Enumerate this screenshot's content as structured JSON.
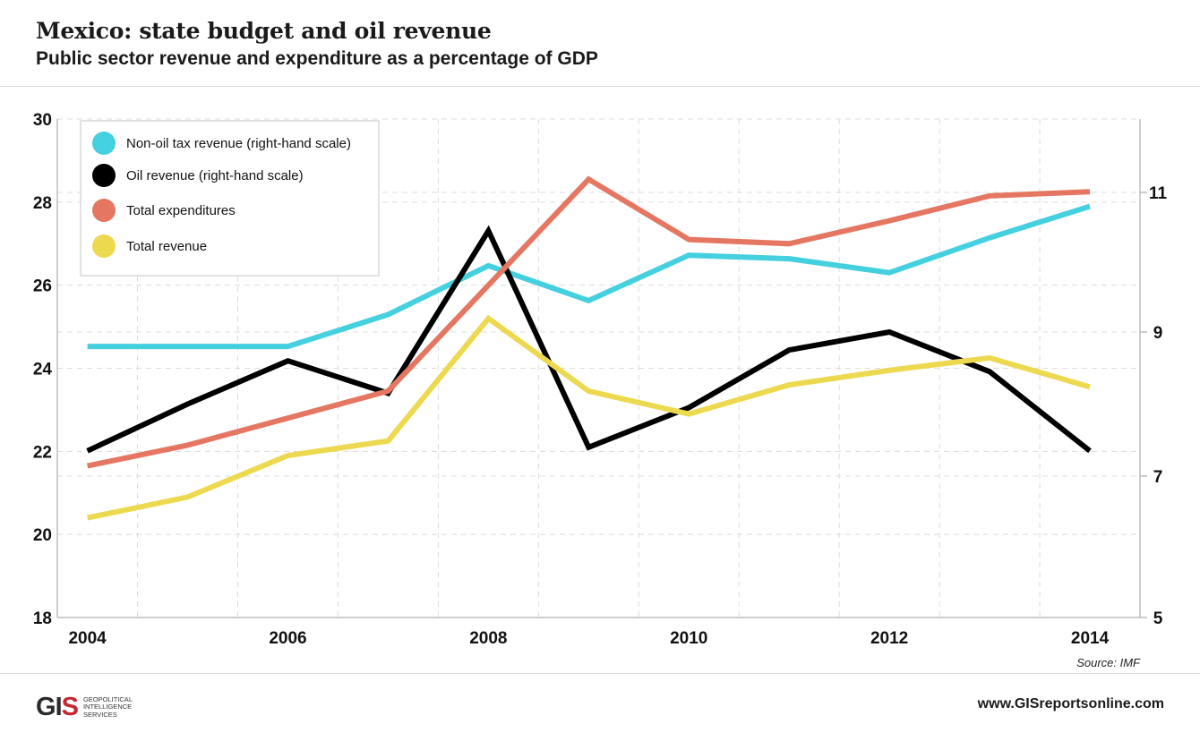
{
  "header": {
    "title": "Mexico: state budget and oil revenue",
    "subtitle": "Public sector revenue and expenditure as a percentage of GDP"
  },
  "footer": {
    "source": "Source: IMF",
    "logo_mark": "GIS",
    "logo_lines": [
      "GEOPOLITICAL",
      "INTELLIGENCE",
      "SERVICES"
    ],
    "website": "www.GISreportsonline.com"
  },
  "chart_data": {
    "type": "line",
    "x": [
      2004,
      2005,
      2006,
      2007,
      2008,
      2009,
      2010,
      2011,
      2012,
      2012.5,
      2013,
      2014
    ],
    "x_ticks": [
      "2004",
      "2006",
      "2008",
      "2010",
      "2012",
      "2014"
    ],
    "xlim": [
      2003.7,
      2014.5
    ],
    "ylim_left": [
      18,
      30
    ],
    "yticks_left": [
      "30",
      "28",
      "26",
      "24",
      "22",
      "20",
      "18"
    ],
    "ylim_right": [
      5,
      12
    ],
    "yticks_right": [
      "11",
      "9",
      "7",
      "5"
    ],
    "grid": true,
    "legend_position": "top-left",
    "series": [
      {
        "name": "Non-oil tax revenue (right-hand scale)",
        "axis": "right",
        "color": "#45d0e0",
        "points": [
          [
            2004,
            8.8
          ],
          [
            2005,
            8.8
          ],
          [
            2006,
            8.8
          ],
          [
            2007,
            9.25
          ],
          [
            2008,
            9.95
          ],
          [
            2009,
            9.45
          ],
          [
            2010,
            10.1
          ],
          [
            2011,
            10.05
          ],
          [
            2012,
            9.85
          ],
          [
            2013,
            10.35
          ],
          [
            2014,
            10.8
          ]
        ]
      },
      {
        "name": "Oil revenue (right-hand scale)",
        "axis": "right",
        "color": "#000000",
        "points": [
          [
            2004,
            7.35
          ],
          [
            2005,
            8.0
          ],
          [
            2006,
            8.6
          ],
          [
            2007,
            8.15
          ],
          [
            2008,
            10.45
          ],
          [
            2009,
            7.4
          ],
          [
            2010,
            7.95
          ],
          [
            2011,
            8.75
          ],
          [
            2012,
            9.0
          ],
          [
            2013,
            8.45
          ],
          [
            2014,
            7.35
          ]
        ]
      },
      {
        "name": "Total expenditures",
        "axis": "left",
        "color": "#e57762",
        "points": [
          [
            2004,
            21.65
          ],
          [
            2005,
            22.15
          ],
          [
            2006,
            22.8
          ],
          [
            2007,
            23.45
          ],
          [
            2008,
            26.0
          ],
          [
            2009,
            28.55
          ],
          [
            2010,
            27.1
          ],
          [
            2011,
            27.0
          ],
          [
            2012,
            27.55
          ],
          [
            2012.5,
            27.85
          ],
          [
            2013,
            28.15
          ],
          [
            2014,
            28.25
          ]
        ]
      },
      {
        "name": "Total revenue",
        "axis": "left",
        "color": "#ecd94f",
        "points": [
          [
            2004,
            20.4
          ],
          [
            2005,
            20.9
          ],
          [
            2006,
            21.9
          ],
          [
            2007,
            22.25
          ],
          [
            2008,
            25.2
          ],
          [
            2009,
            23.45
          ],
          [
            2010,
            22.9
          ],
          [
            2011,
            23.6
          ],
          [
            2012,
            23.95
          ],
          [
            2013,
            24.25
          ],
          [
            2014,
            23.55
          ]
        ]
      }
    ]
  }
}
